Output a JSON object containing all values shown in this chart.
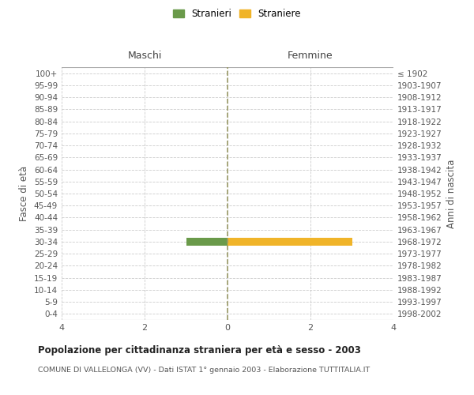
{
  "age_groups": [
    "100+",
    "95-99",
    "90-94",
    "85-89",
    "80-84",
    "75-79",
    "70-74",
    "65-69",
    "60-64",
    "55-59",
    "50-54",
    "45-49",
    "40-44",
    "35-39",
    "30-34",
    "25-29",
    "20-24",
    "15-19",
    "10-14",
    "5-9",
    "0-4"
  ],
  "birth_years": [
    "≤ 1902",
    "1903-1907",
    "1908-1912",
    "1913-1917",
    "1918-1922",
    "1923-1927",
    "1928-1932",
    "1933-1937",
    "1938-1942",
    "1943-1947",
    "1948-1952",
    "1953-1957",
    "1958-1962",
    "1963-1967",
    "1968-1972",
    "1973-1977",
    "1978-1982",
    "1983-1987",
    "1988-1992",
    "1993-1997",
    "1998-2002"
  ],
  "maschi_values": [
    0,
    0,
    0,
    0,
    0,
    0,
    0,
    0,
    0,
    0,
    0,
    0,
    0,
    0,
    1,
    0,
    0,
    0,
    0,
    0,
    0
  ],
  "femmine_values": [
    0,
    0,
    0,
    0,
    0,
    0,
    0,
    0,
    0,
    0,
    0,
    0,
    0,
    0,
    3,
    0,
    0,
    0,
    0,
    0,
    0
  ],
  "stranieri_color": "#6a9a4a",
  "straniere_color": "#f0b429",
  "xlim": 4,
  "xlabel_maschi": "Maschi",
  "xlabel_femmine": "Femmine",
  "ylabel_left": "Fasce di età",
  "ylabel_right": "Anni di nascita",
  "legend_stranieri": "Stranieri",
  "legend_straniere": "Straniere",
  "title": "Popolazione per cittadinanza straniera per età e sesso - 2003",
  "subtitle": "COMUNE DI VALLELONGA (VV) - Dati ISTAT 1° gennaio 2003 - Elaborazione TUTTITALIA.IT",
  "bg_color": "#ffffff",
  "grid_color": "#cccccc",
  "bar_height": 0.6,
  "zero_line_color": "#999966"
}
